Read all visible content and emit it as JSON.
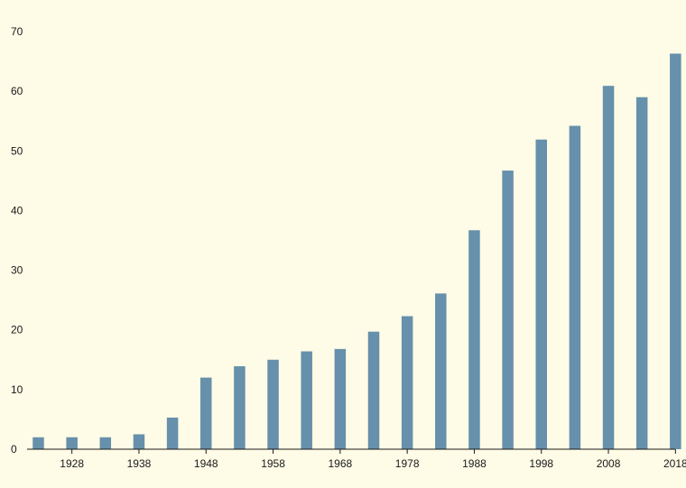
{
  "chart_data": {
    "type": "bar",
    "title": "",
    "xlabel": "",
    "ylabel": "",
    "categories": [
      "1923",
      "1928",
      "1933",
      "1938",
      "1943",
      "1948",
      "1953",
      "1958",
      "1963",
      "1968",
      "1973",
      "1978",
      "1983",
      "1988",
      "1993",
      "1998",
      "2003",
      "2008",
      "2013",
      "2018"
    ],
    "values": [
      2.0,
      2.0,
      2.0,
      2.5,
      5.3,
      12.0,
      13.9,
      15.0,
      16.4,
      16.8,
      19.7,
      22.3,
      26.1,
      36.7,
      46.7,
      51.9,
      54.2,
      60.9,
      59.0,
      66.3
    ],
    "x_tick_labels": [
      "1928",
      "1938",
      "1948",
      "1958",
      "1968",
      "1978",
      "1988",
      "1998",
      "2008",
      "2018"
    ],
    "y_tick_labels": [
      "0",
      "10",
      "20",
      "30",
      "40",
      "50",
      "60",
      "70"
    ],
    "ylim": [
      0,
      70
    ],
    "grid": false,
    "bar_color": "#6690ab",
    "axis_color": "#1a1a1a",
    "background_color": "#fefbe6"
  }
}
